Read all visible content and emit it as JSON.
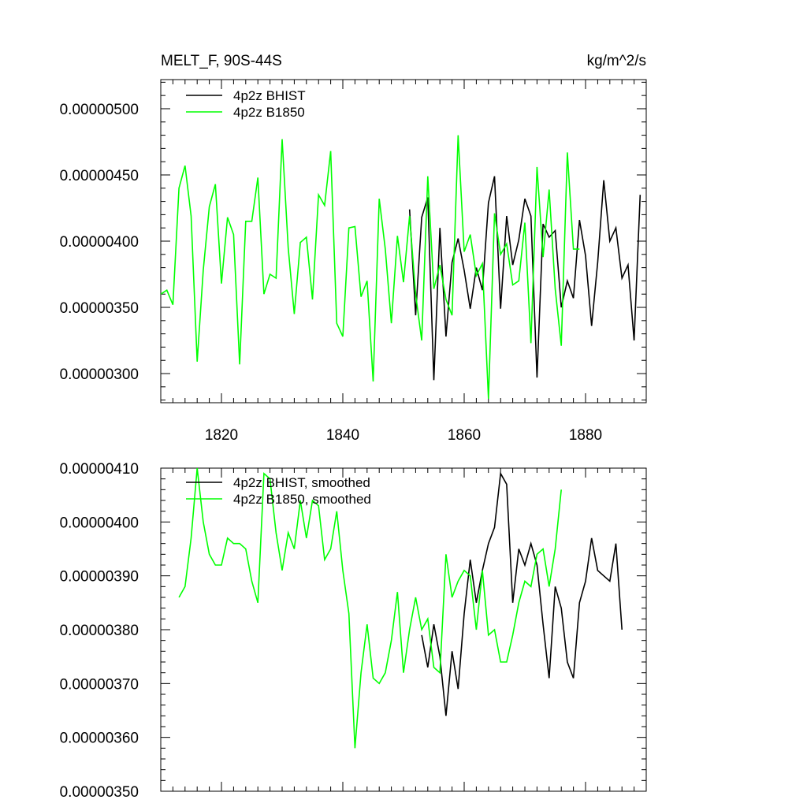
{
  "chart_data": [
    {
      "type": "line",
      "title": "MELT_F, 90S-44S",
      "units": "kg/m^2/s",
      "xlim": [
        1810,
        1890
      ],
      "ylim": [
        2.78e-06,
        5.22e-06
      ],
      "x_ticks": [
        1820,
        1840,
        1860,
        1880
      ],
      "x_tick_labels": [
        "1820",
        "1840",
        "1860",
        "1880"
      ],
      "y_ticks": [
        3e-06,
        3.5e-06,
        4e-06,
        4.5e-06,
        5e-06
      ],
      "y_tick_labels": [
        "0.00000300",
        "0.00000350",
        "0.00000400",
        "0.00000450",
        "0.00000500"
      ],
      "legend_position": "top-left",
      "series": [
        {
          "name": "4p2z BHIST",
          "color": "#000000",
          "x": [
            1851,
            1852,
            1853,
            1854,
            1855,
            1856,
            1857,
            1858,
            1859,
            1860,
            1861,
            1862,
            1863,
            1864,
            1865,
            1866,
            1867,
            1868,
            1869,
            1870,
            1871,
            1872,
            1873,
            1874,
            1875,
            1876,
            1877,
            1878,
            1879,
            1880,
            1881,
            1882,
            1883,
            1884,
            1885,
            1886,
            1887,
            1888,
            1889
          ],
          "y": [
            4.24e-06,
            3.44e-06,
            4.18e-06,
            4.33e-06,
            2.95e-06,
            4.1e-06,
            3.28e-06,
            3.84e-06,
            4.02e-06,
            3.78e-06,
            3.49e-06,
            3.8e-06,
            3.63e-06,
            4.29e-06,
            4.49e-06,
            3.49e-06,
            4.19e-06,
            3.82e-06,
            4.01e-06,
            4.32e-06,
            4.19e-06,
            2.97e-06,
            4.13e-06,
            4.03e-06,
            4.08e-06,
            3.5e-06,
            3.7e-06,
            3.57e-06,
            4.16e-06,
            3.89e-06,
            3.36e-06,
            3.84e-06,
            4.46e-06,
            4e-06,
            4.1e-06,
            3.72e-06,
            3.82e-06,
            3.25e-06,
            4.35e-06
          ]
        },
        {
          "name": "4p2z B1850",
          "color": "#00ff00",
          "x": [
            1810,
            1811,
            1812,
            1813,
            1814,
            1815,
            1816,
            1817,
            1818,
            1819,
            1820,
            1821,
            1822,
            1823,
            1824,
            1825,
            1826,
            1827,
            1828,
            1829,
            1830,
            1831,
            1832,
            1833,
            1834,
            1835,
            1836,
            1837,
            1838,
            1839,
            1840,
            1841,
            1842,
            1843,
            1844,
            1845,
            1846,
            1847,
            1848,
            1849,
            1850,
            1851,
            1852,
            1853,
            1854,
            1855,
            1856,
            1857,
            1858,
            1859,
            1860,
            1861,
            1862,
            1863,
            1864,
            1865,
            1866,
            1867,
            1868,
            1869,
            1870,
            1871,
            1872,
            1873,
            1874,
            1875,
            1876,
            1877,
            1878,
            1879
          ],
          "y": [
            3.6e-06,
            3.63e-06,
            3.52e-06,
            4.4e-06,
            4.57e-06,
            4.19e-06,
            3.09e-06,
            3.78e-06,
            4.26e-06,
            4.43e-06,
            3.68e-06,
            4.18e-06,
            4.05e-06,
            3.07e-06,
            4.15e-06,
            4.15e-06,
            4.48e-06,
            3.6e-06,
            3.75e-06,
            3.72e-06,
            4.77e-06,
            3.95e-06,
            3.45e-06,
            3.99e-06,
            4.03e-06,
            3.56e-06,
            4.35e-06,
            4.27e-06,
            4.68e-06,
            3.38e-06,
            3.28e-06,
            4.1e-06,
            4.11e-06,
            3.58e-06,
            3.7e-06,
            2.94e-06,
            4.32e-06,
            3.94e-06,
            3.38e-06,
            4.04e-06,
            3.69e-06,
            4.19e-06,
            3.6e-06,
            3.25e-06,
            4.49e-06,
            3.64e-06,
            3.82e-06,
            3.56e-06,
            3.44e-06,
            4.8e-06,
            3.92e-06,
            4.05e-06,
            3.74e-06,
            3.83e-06,
            2.81e-06,
            4.21e-06,
            3.9e-06,
            3.98e-06,
            3.67e-06,
            3.7e-06,
            4.14e-06,
            3.23e-06,
            4.56e-06,
            3.88e-06,
            4.39e-06,
            3.64e-06,
            3.21e-06,
            4.67e-06,
            3.94e-06,
            3.94e-06
          ]
        }
      ]
    },
    {
      "type": "line",
      "xlim": [
        1810,
        1890
      ],
      "ylim": [
        3.5e-06,
        4.1e-06
      ],
      "x_ticks": [
        1820,
        1840,
        1860,
        1880
      ],
      "y_ticks": [
        3.5e-06,
        3.6e-06,
        3.7e-06,
        3.8e-06,
        3.9e-06,
        4e-06,
        4.1e-06
      ],
      "y_tick_labels": [
        "0.00000350",
        "0.00000360",
        "0.00000370",
        "0.00000380",
        "0.00000390",
        "0.00000400",
        "0.00000410"
      ],
      "legend_position": "top-left",
      "series": [
        {
          "name": "4p2z BHIST, smoothed",
          "color": "#000000",
          "x": [
            1853,
            1854,
            1855,
            1856,
            1857,
            1858,
            1859,
            1860,
            1861,
            1862,
            1863,
            1864,
            1865,
            1866,
            1867,
            1868,
            1869,
            1870,
            1871,
            1872,
            1873,
            1874,
            1875,
            1876,
            1877,
            1878,
            1879,
            1880,
            1881,
            1882,
            1883,
            1884,
            1885,
            1886
          ],
          "y": [
            3.79e-06,
            3.73e-06,
            3.81e-06,
            3.75e-06,
            3.64e-06,
            3.76e-06,
            3.69e-06,
            3.83e-06,
            3.93e-06,
            3.85e-06,
            3.91e-06,
            3.96e-06,
            3.99e-06,
            4.09e-06,
            4.07e-06,
            3.85e-06,
            3.95e-06,
            3.92e-06,
            3.96e-06,
            3.92e-06,
            3.81e-06,
            3.71e-06,
            3.88e-06,
            3.84e-06,
            3.74e-06,
            3.71e-06,
            3.85e-06,
            3.89e-06,
            3.97e-06,
            3.91e-06,
            3.9e-06,
            3.89e-06,
            3.96e-06,
            3.8e-06
          ]
        },
        {
          "name": "4p2z B1850, smoothed",
          "color": "#00ff00",
          "x": [
            1813,
            1814,
            1815,
            1816,
            1817,
            1818,
            1819,
            1820,
            1821,
            1822,
            1823,
            1824,
            1825,
            1826,
            1827,
            1828,
            1829,
            1830,
            1831,
            1832,
            1833,
            1834,
            1835,
            1836,
            1837,
            1838,
            1839,
            1840,
            1841,
            1842,
            1843,
            1844,
            1845,
            1846,
            1847,
            1848,
            1849,
            1850,
            1851,
            1852,
            1853,
            1854,
            1855,
            1856,
            1857,
            1858,
            1859,
            1860,
            1861,
            1862,
            1863,
            1864,
            1865,
            1866,
            1867,
            1868,
            1869,
            1870,
            1871,
            1872,
            1873,
            1874,
            1875,
            1876
          ],
          "y": [
            3.86e-06,
            3.88e-06,
            3.97e-06,
            4.1e-06,
            4e-06,
            3.94e-06,
            3.92e-06,
            3.92e-06,
            3.97e-06,
            3.96e-06,
            3.96e-06,
            3.95e-06,
            3.89e-06,
            3.85e-06,
            4.09e-06,
            4.08e-06,
            3.98e-06,
            3.91e-06,
            3.98e-06,
            3.95e-06,
            4.04e-06,
            3.97e-06,
            4.04e-06,
            4.03e-06,
            3.93e-06,
            3.95e-06,
            4.02e-06,
            3.91e-06,
            3.83e-06,
            3.58e-06,
            3.72e-06,
            3.81e-06,
            3.71e-06,
            3.7e-06,
            3.72e-06,
            3.78e-06,
            3.87e-06,
            3.72e-06,
            3.8e-06,
            3.86e-06,
            3.8e-06,
            3.82e-06,
            3.73e-06,
            3.72e-06,
            3.94e-06,
            3.86e-06,
            3.89e-06,
            3.91e-06,
            3.9e-06,
            3.8e-06,
            3.91e-06,
            3.79e-06,
            3.8e-06,
            3.74e-06,
            3.74e-06,
            3.79e-06,
            3.85e-06,
            3.89e-06,
            3.88e-06,
            3.94e-06,
            3.95e-06,
            3.88e-06,
            3.95e-06,
            4.06e-06
          ]
        }
      ]
    }
  ]
}
